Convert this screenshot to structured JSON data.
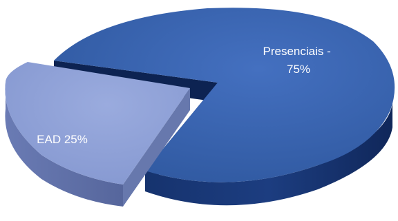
{
  "chart_data": {
    "type": "pie",
    "style": "3d-exploded",
    "title": "",
    "slices": [
      {
        "label": "Presenciais - 75%",
        "label_lines": [
          "Presenciais -",
          "75%"
        ],
        "value": 75,
        "color": "#3a64b0"
      },
      {
        "label": "EAD 25%",
        "label_lines": [
          "EAD 25%"
        ],
        "value": 25,
        "color": "#8e9fd6"
      }
    ],
    "legend": "none"
  }
}
